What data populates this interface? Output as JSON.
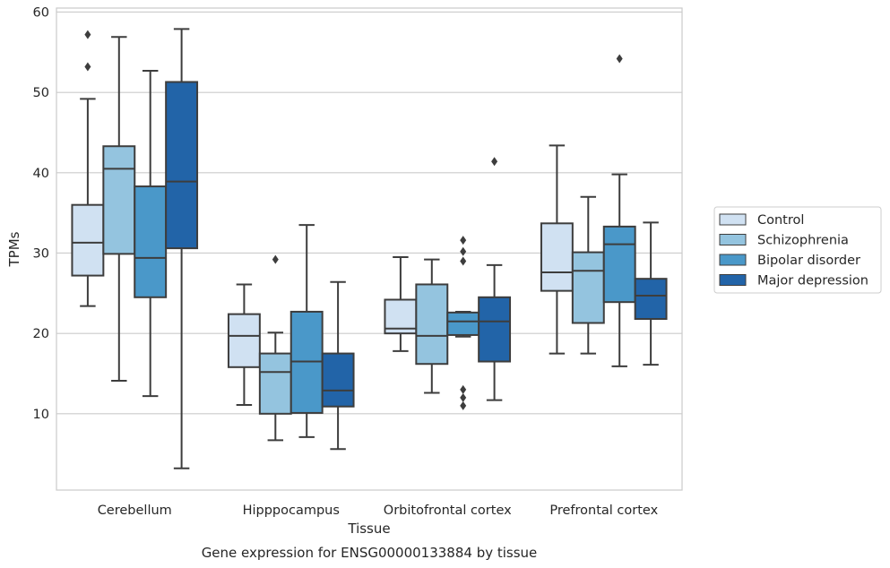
{
  "chart_data": {
    "type": "boxplot",
    "caption": "Gene expression for ENSG00000133884 by tissue",
    "xlabel": "Tissue",
    "ylabel": "TPMs",
    "ylim": [
      0.5,
      60.5
    ],
    "yticks": [
      10,
      20,
      30,
      40,
      50,
      60
    ],
    "grid": "horizontal",
    "legend_position": "right",
    "categories": [
      "Cerebellum",
      "Hipppocampus",
      "Orbitofrontal cortex",
      "Prefrontal cortex"
    ],
    "series": [
      {
        "name": "Control",
        "color": "#d0e1f2",
        "boxes": [
          {
            "whislo": 23.4,
            "q1": 27.2,
            "med": 31.3,
            "q3": 36.0,
            "whishi": 49.2,
            "fliers": [
              53.2,
              57.2
            ]
          },
          {
            "whislo": 11.1,
            "q1": 15.8,
            "med": 19.7,
            "q3": 22.4,
            "whishi": 26.1,
            "fliers": []
          },
          {
            "whislo": 17.8,
            "q1": 20.0,
            "med": 20.6,
            "q3": 24.2,
            "whishi": 29.5,
            "fliers": []
          },
          {
            "whislo": 17.5,
            "q1": 25.3,
            "med": 27.6,
            "q3": 33.7,
            "whishi": 43.4,
            "fliers": []
          }
        ]
      },
      {
        "name": "Schizophrenia",
        "color": "#94c4df",
        "boxes": [
          {
            "whislo": 14.1,
            "q1": 29.9,
            "med": 40.5,
            "q3": 43.3,
            "whishi": 56.9,
            "fliers": []
          },
          {
            "whislo": 6.7,
            "q1": 10.0,
            "med": 15.2,
            "q3": 17.5,
            "whishi": 20.1,
            "fliers": [
              29.2
            ]
          },
          {
            "whislo": 12.6,
            "q1": 16.2,
            "med": 19.7,
            "q3": 26.1,
            "whishi": 29.2,
            "fliers": []
          },
          {
            "whislo": 17.5,
            "q1": 21.3,
            "med": 27.8,
            "q3": 30.1,
            "whishi": 37.0,
            "fliers": []
          }
        ]
      },
      {
        "name": "Bipolar disorder",
        "color": "#4a98c9",
        "boxes": [
          {
            "whislo": 12.2,
            "q1": 24.5,
            "med": 29.4,
            "q3": 38.3,
            "whishi": 52.7,
            "fliers": []
          },
          {
            "whislo": 7.1,
            "q1": 10.1,
            "med": 16.5,
            "q3": 22.7,
            "whishi": 33.5,
            "fliers": []
          },
          {
            "whislo": 19.6,
            "q1": 19.8,
            "med": 21.5,
            "q3": 22.6,
            "whishi": 22.7,
            "fliers": [
              31.6,
              30.2,
              29.0,
              13.0,
              12.0,
              11.0
            ]
          },
          {
            "whislo": 15.9,
            "q1": 23.9,
            "med": 31.1,
            "q3": 33.3,
            "whishi": 39.8,
            "fliers": [
              54.2
            ]
          }
        ]
      },
      {
        "name": "Major depression",
        "color": "#2264a8",
        "boxes": [
          {
            "whislo": 3.2,
            "q1": 30.6,
            "med": 38.9,
            "q3": 51.3,
            "whishi": 57.9,
            "fliers": []
          },
          {
            "whislo": 5.6,
            "q1": 10.9,
            "med": 12.9,
            "q3": 17.5,
            "whishi": 26.4,
            "fliers": []
          },
          {
            "whislo": 11.7,
            "q1": 16.5,
            "med": 21.5,
            "q3": 24.5,
            "whishi": 28.5,
            "fliers": [
              41.4
            ]
          },
          {
            "whislo": 16.1,
            "q1": 21.8,
            "med": 24.7,
            "q3": 26.8,
            "whishi": 33.8,
            "fliers": []
          }
        ]
      }
    ]
  }
}
